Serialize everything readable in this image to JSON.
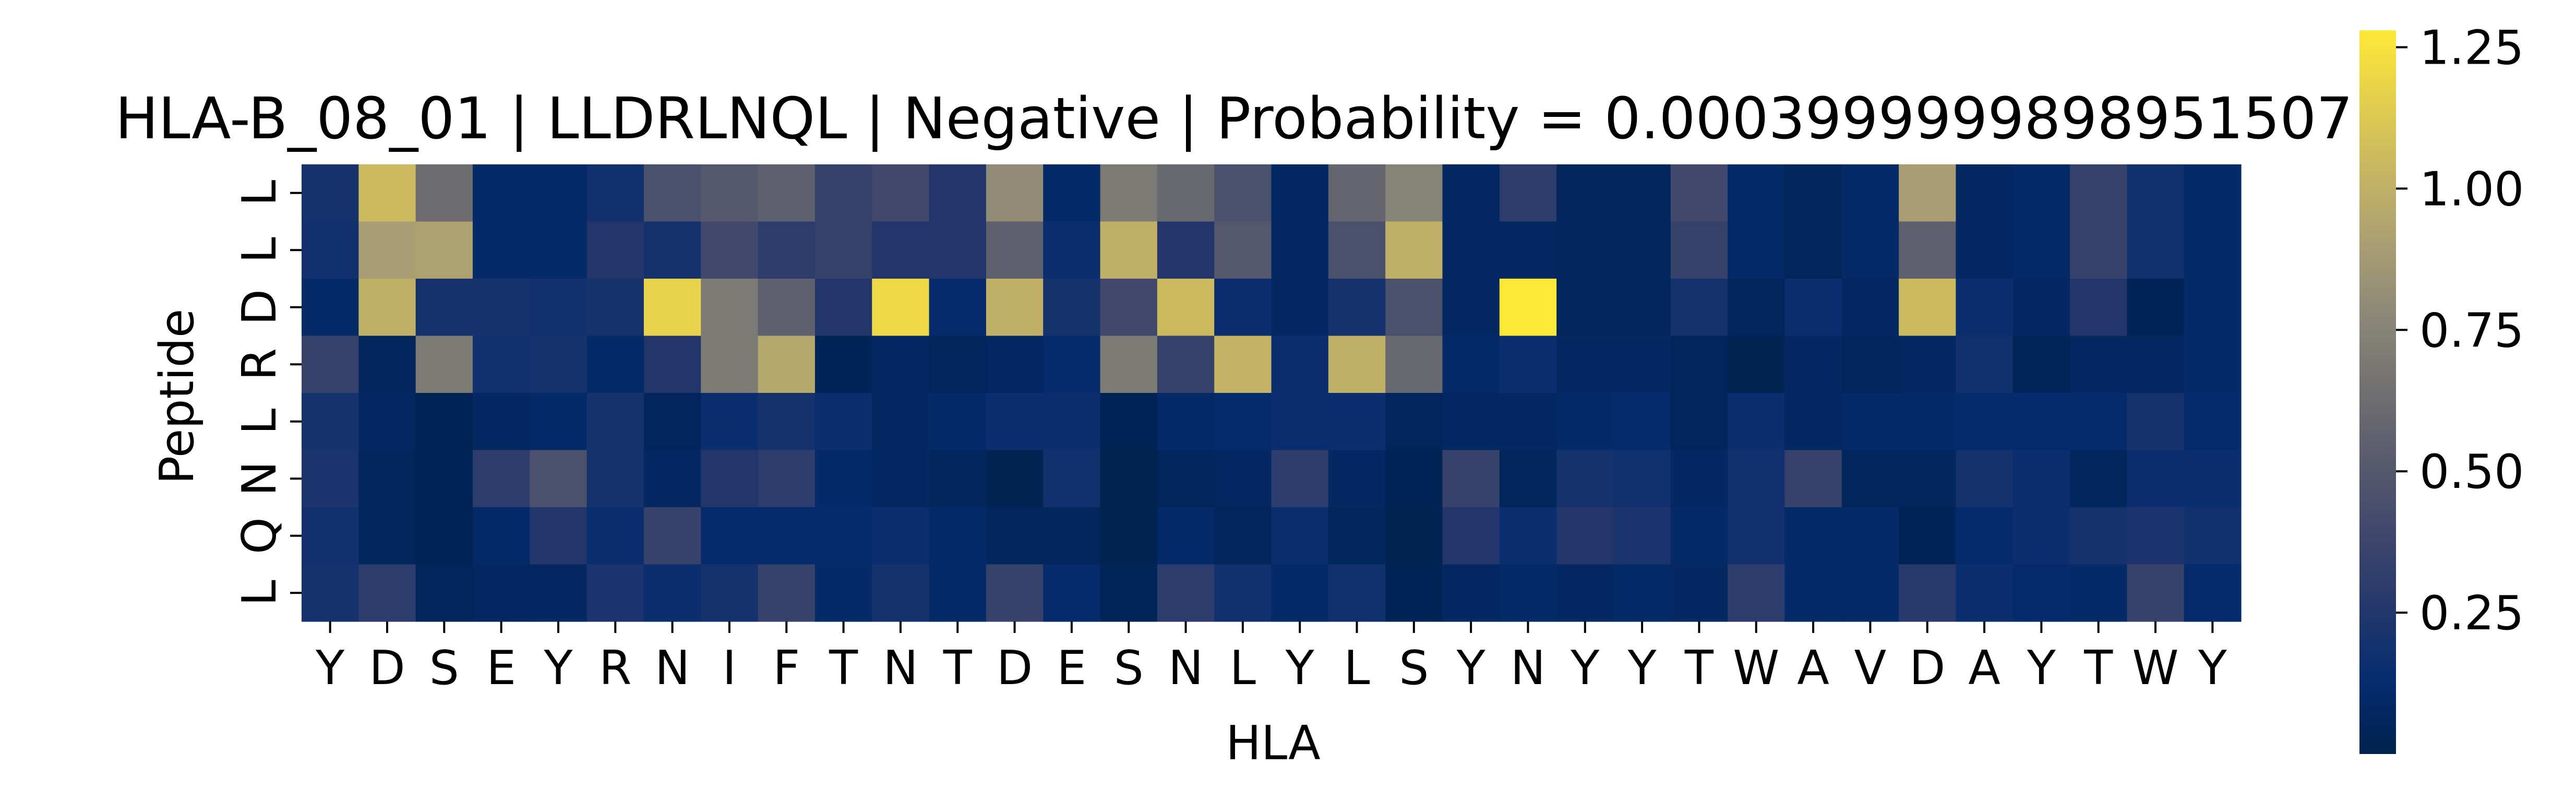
{
  "chart_data": {
    "type": "heatmap",
    "title": "HLA-B_08_01 | LLDRLNQL | Negative | Probability = 0.0003999999898951507",
    "xlabel": "HLA",
    "ylabel": "Peptide",
    "x_categories": [
      "Y",
      "D",
      "S",
      "E",
      "Y",
      "R",
      "N",
      "I",
      "F",
      "T",
      "N",
      "T",
      "D",
      "E",
      "S",
      "N",
      "L",
      "Y",
      "L",
      "S",
      "Y",
      "N",
      "Y",
      "Y",
      "T",
      "W",
      "A",
      "V",
      "D",
      "A",
      "Y",
      "T",
      "W",
      "Y"
    ],
    "y_categories": [
      "L",
      "L",
      "D",
      "R",
      "L",
      "N",
      "Q",
      "L"
    ],
    "colormap": "cividis",
    "vmin": 0.0,
    "vmax": 1.28,
    "colorbar_ticks": [
      "0.25",
      "0.50",
      "0.75",
      "1.00",
      "1.25"
    ],
    "colorbar_tick_values": [
      0.25,
      0.5,
      0.75,
      1.0,
      1.25
    ],
    "values": [
      [
        0.2,
        1.05,
        0.62,
        0.1,
        0.1,
        0.18,
        0.45,
        0.5,
        0.55,
        0.35,
        0.4,
        0.25,
        0.8,
        0.1,
        0.7,
        0.6,
        0.45,
        0.08,
        0.58,
        0.75,
        0.07,
        0.3,
        0.05,
        0.05,
        0.4,
        0.1,
        0.05,
        0.1,
        0.9,
        0.08,
        0.1,
        0.35,
        0.18,
        0.1
      ],
      [
        0.18,
        0.9,
        0.92,
        0.1,
        0.1,
        0.25,
        0.2,
        0.4,
        0.3,
        0.35,
        0.25,
        0.25,
        0.55,
        0.15,
        1.0,
        0.25,
        0.5,
        0.08,
        0.45,
        1.0,
        0.07,
        0.07,
        0.05,
        0.05,
        0.35,
        0.1,
        0.05,
        0.1,
        0.55,
        0.08,
        0.1,
        0.35,
        0.18,
        0.1
      ],
      [
        0.1,
        1.0,
        0.2,
        0.2,
        0.18,
        0.2,
        1.17,
        0.7,
        0.55,
        0.25,
        1.2,
        0.12,
        1.0,
        0.2,
        0.4,
        1.05,
        0.15,
        0.08,
        0.2,
        0.45,
        0.07,
        1.28,
        0.05,
        0.05,
        0.2,
        0.05,
        0.15,
        0.08,
        1.05,
        0.15,
        0.08,
        0.25,
        0.03,
        0.1
      ],
      [
        0.35,
        0.05,
        0.7,
        0.18,
        0.2,
        0.1,
        0.25,
        0.7,
        0.95,
        0.03,
        0.07,
        0.05,
        0.07,
        0.12,
        0.7,
        0.35,
        1.02,
        0.15,
        1.0,
        0.6,
        0.1,
        0.15,
        0.08,
        0.08,
        0.05,
        0.02,
        0.08,
        0.05,
        0.08,
        0.18,
        0.04,
        0.08,
        0.07,
        0.1
      ],
      [
        0.2,
        0.07,
        0.03,
        0.08,
        0.1,
        0.2,
        0.05,
        0.15,
        0.2,
        0.15,
        0.08,
        0.1,
        0.15,
        0.15,
        0.03,
        0.1,
        0.12,
        0.15,
        0.15,
        0.05,
        0.08,
        0.08,
        0.1,
        0.12,
        0.05,
        0.15,
        0.08,
        0.1,
        0.1,
        0.12,
        0.12,
        0.12,
        0.2,
        0.12
      ],
      [
        0.22,
        0.06,
        0.03,
        0.3,
        0.45,
        0.2,
        0.08,
        0.25,
        0.3,
        0.1,
        0.08,
        0.06,
        0.02,
        0.18,
        0.02,
        0.05,
        0.08,
        0.3,
        0.08,
        0.03,
        0.35,
        0.05,
        0.2,
        0.18,
        0.08,
        0.18,
        0.35,
        0.05,
        0.06,
        0.2,
        0.15,
        0.06,
        0.15,
        0.15
      ],
      [
        0.18,
        0.06,
        0.03,
        0.1,
        0.25,
        0.15,
        0.35,
        0.12,
        0.12,
        0.12,
        0.15,
        0.1,
        0.06,
        0.06,
        0.02,
        0.1,
        0.05,
        0.15,
        0.06,
        0.02,
        0.25,
        0.15,
        0.25,
        0.22,
        0.1,
        0.18,
        0.1,
        0.1,
        0.03,
        0.12,
        0.15,
        0.2,
        0.22,
        0.18
      ],
      [
        0.2,
        0.3,
        0.05,
        0.07,
        0.08,
        0.22,
        0.15,
        0.2,
        0.35,
        0.1,
        0.2,
        0.1,
        0.35,
        0.12,
        0.04,
        0.3,
        0.18,
        0.1,
        0.18,
        0.03,
        0.08,
        0.1,
        0.08,
        0.1,
        0.08,
        0.3,
        0.1,
        0.1,
        0.28,
        0.15,
        0.12,
        0.1,
        0.35,
        0.12
      ]
    ]
  }
}
